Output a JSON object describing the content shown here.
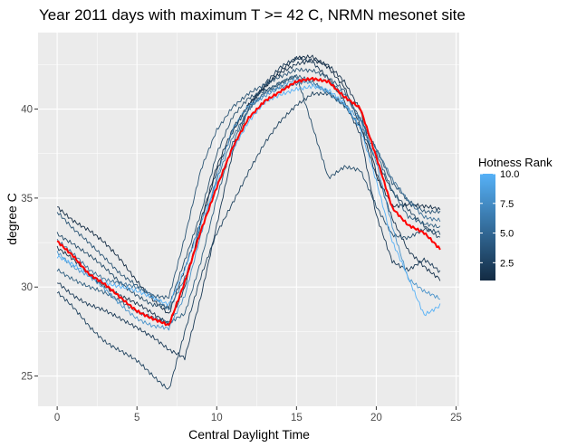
{
  "chart_data": {
    "type": "line",
    "title": "Year 2011 days with maximum T >= 42 C, NRMN mesonet site",
    "xlabel": "Central Daylight Time",
    "ylabel": "degree C",
    "xlim": [
      -1.2,
      25.2
    ],
    "ylim": [
      23.3,
      44.3
    ],
    "x_ticks": [
      0,
      5,
      10,
      15,
      20,
      25
    ],
    "x_tick_labels": [
      "0",
      "5",
      "10",
      "15",
      "20",
      "25"
    ],
    "y_ticks": [
      25,
      30,
      35,
      40
    ],
    "y_tick_labels": [
      "25",
      "30",
      "35",
      "40"
    ],
    "grid": true,
    "legend": {
      "title": "Hotness Rank",
      "placement": "right",
      "range": [
        1,
        10
      ],
      "ticks": [
        2.5,
        5.0,
        7.5,
        10.0
      ],
      "tick_labels": [
        "2.5",
        "5.0",
        "7.5",
        "10.0"
      ],
      "color_low": "#132B43",
      "color_high": "#56B1F7"
    },
    "series": [
      {
        "name": "rank 1",
        "rank": 1,
        "color": "#132B43",
        "x": [
          0,
          1,
          2,
          3,
          4,
          5,
          6,
          7,
          8,
          9,
          10,
          11,
          12,
          13,
          14,
          15,
          16,
          17,
          18,
          19,
          20,
          21,
          22,
          23,
          24
        ],
        "y": [
          34.5,
          33.8,
          33.2,
          32.4,
          31.5,
          30.4,
          29.3,
          28.4,
          31.0,
          33.8,
          36.8,
          38.8,
          40.2,
          41.3,
          42.2,
          42.8,
          42.9,
          42.4,
          41.3,
          39.0,
          36.2,
          34.6,
          34.7,
          34.5,
          34.3
        ]
      },
      {
        "name": "rank 2",
        "rank": 2,
        "color": "#17324C",
        "x": [
          0,
          1,
          2,
          3,
          4,
          5,
          6,
          7,
          8,
          9,
          10,
          11,
          12,
          13,
          14,
          15,
          16,
          17,
          18,
          19,
          20,
          21,
          22,
          23,
          24
        ],
        "y": [
          32.2,
          31.5,
          30.7,
          30.1,
          29.5,
          29.0,
          28.5,
          28.0,
          30.0,
          33.5,
          36.5,
          38.8,
          40.3,
          41.2,
          42.0,
          42.6,
          42.8,
          42.4,
          41.5,
          40.0,
          36.5,
          33.8,
          32.0,
          31.2,
          30.5
        ]
      },
      {
        "name": "rank 3",
        "rank": 3,
        "color": "#1B3A56",
        "x": [
          0,
          1,
          2,
          3,
          4,
          5,
          6,
          7,
          8,
          9,
          10,
          11,
          12,
          13,
          14,
          15,
          16,
          17,
          18,
          19,
          20,
          21,
          22,
          23,
          24
        ],
        "y": [
          30.3,
          29.6,
          29.0,
          28.6,
          28.2,
          27.8,
          27.2,
          26.4,
          26.0,
          29.5,
          33.5,
          37.5,
          40.0,
          41.5,
          42.4,
          42.8,
          42.6,
          41.8,
          40.5,
          38.5,
          34.0,
          31.5,
          31.0,
          31.5,
          30.8
        ]
      },
      {
        "name": "rank 4",
        "rank": 4,
        "color": "#20435F",
        "x": [
          0,
          1,
          2,
          3,
          4,
          5,
          6,
          7,
          8,
          9,
          10,
          11,
          12,
          13,
          14,
          15,
          16,
          17,
          18,
          19,
          20,
          21,
          22,
          23,
          24
        ],
        "y": [
          29.7,
          28.8,
          27.8,
          27.0,
          26.4,
          25.8,
          25.0,
          24.3,
          27.5,
          30.5,
          33.0,
          34.8,
          36.5,
          38.0,
          39.3,
          40.3,
          40.9,
          40.8,
          40.2,
          39.0,
          37.2,
          35.3,
          34.3,
          33.5,
          32.8
        ]
      },
      {
        "name": "rank 5",
        "rank": 5,
        "color": "#254C69",
        "x": [
          0,
          1,
          2,
          3,
          4,
          5,
          6,
          7,
          8,
          9,
          10,
          11,
          12,
          13,
          14,
          15,
          16,
          17,
          18,
          19,
          20,
          21,
          22,
          23,
          24
        ],
        "y": [
          33.0,
          32.5,
          31.8,
          31.0,
          30.2,
          29.6,
          29.0,
          28.8,
          31.5,
          34.2,
          37.5,
          39.5,
          40.6,
          41.1,
          41.5,
          41.8,
          39.0,
          36.2,
          36.8,
          36.5,
          34.5,
          33.0,
          32.8,
          33.2,
          33.0
        ]
      },
      {
        "name": "rank 6",
        "rank": 6,
        "color": "#2A5474",
        "x": [
          0,
          1,
          2,
          3,
          4,
          5,
          6,
          7,
          8,
          9,
          10,
          11,
          12,
          13,
          14,
          15,
          16,
          17,
          18,
          19,
          20,
          21,
          22,
          23,
          24
        ],
        "y": [
          34.2,
          33.2,
          32.5,
          31.7,
          30.7,
          30.0,
          29.5,
          29.5,
          32.8,
          36.5,
          38.8,
          40.2,
          40.9,
          41.3,
          41.8,
          42.3,
          42.2,
          41.7,
          41.0,
          39.5,
          37.8,
          35.8,
          34.8,
          34.3,
          34.3
        ]
      },
      {
        "name": "rank 7",
        "rank": 7,
        "color": "#2F5E7F",
        "x": [
          0,
          1,
          2,
          3,
          4,
          5,
          6,
          7,
          8,
          9,
          10,
          11,
          12,
          13,
          14,
          15,
          16,
          17,
          18,
          19,
          20,
          21,
          22,
          23,
          24
        ],
        "y": [
          31.0,
          30.5,
          30.0,
          29.6,
          29.2,
          28.7,
          28.3,
          27.9,
          28.5,
          31.5,
          35.0,
          38.0,
          40.0,
          41.0,
          41.5,
          41.8,
          41.5,
          41.0,
          40.2,
          39.0,
          37.5,
          35.5,
          34.0,
          33.5,
          33.3
        ]
      },
      {
        "name": "rank 8",
        "rank": 8,
        "color": "#3A6F97",
        "x": [
          0,
          1,
          2,
          3,
          4,
          5,
          6,
          7,
          8,
          9,
          10,
          11,
          12,
          13,
          14,
          15,
          16,
          17,
          18,
          19,
          20,
          21,
          22,
          23,
          24
        ],
        "y": [
          32.6,
          31.8,
          31.0,
          30.5,
          30.2,
          29.9,
          29.5,
          28.8,
          30.5,
          33.0,
          36.0,
          38.5,
          40.0,
          40.8,
          41.2,
          41.5,
          41.7,
          41.5,
          40.8,
          39.5,
          37.8,
          36.0,
          34.8,
          34.0,
          33.8
        ]
      },
      {
        "name": "rank 9",
        "rank": 9,
        "color": "#4993CA",
        "x": [
          0,
          1,
          2,
          3,
          4,
          5,
          6,
          7,
          8,
          9,
          10,
          11,
          12,
          13,
          14,
          15,
          16,
          17,
          18,
          19,
          20,
          21,
          22,
          23,
          24
        ],
        "y": [
          32.0,
          31.2,
          30.6,
          29.8,
          29.0,
          28.3,
          27.8,
          27.6,
          29.5,
          33.0,
          36.2,
          38.8,
          40.2,
          40.8,
          41.3,
          41.6,
          41.4,
          41.0,
          40.3,
          39.3,
          37.0,
          33.5,
          30.5,
          29.7,
          29.3
        ]
      },
      {
        "name": "rank 10",
        "rank": 10,
        "color": "#56B1F7",
        "x": [
          0,
          1,
          2,
          3,
          4,
          5,
          6,
          7,
          8,
          9,
          10,
          11,
          12,
          13,
          14,
          15,
          16,
          17,
          18,
          19,
          20,
          21,
          22,
          23,
          24
        ],
        "y": [
          31.7,
          31.2,
          30.7,
          30.3,
          30.0,
          29.7,
          29.4,
          29.1,
          31.0,
          33.5,
          35.8,
          37.8,
          39.3,
          40.3,
          40.8,
          41.2,
          41.3,
          41.0,
          40.3,
          39.0,
          36.0,
          32.5,
          30.5,
          28.5,
          29.0
        ]
      },
      {
        "name": "mean",
        "rank": null,
        "color": "#FF0000",
        "x": [
          0,
          1,
          2,
          3,
          4,
          5,
          6,
          7,
          8,
          9,
          10,
          11,
          12,
          13,
          14,
          15,
          16,
          17,
          18,
          19,
          20,
          21,
          22,
          23,
          24
        ],
        "y": [
          32.6,
          31.8,
          30.7,
          30.1,
          29.4,
          28.7,
          28.2,
          27.8,
          30.3,
          33.2,
          35.6,
          37.8,
          39.5,
          40.5,
          41.0,
          41.5,
          41.7,
          41.6,
          40.7,
          40.0,
          37.3,
          34.5,
          33.5,
          33.0,
          32.1
        ]
      }
    ]
  }
}
